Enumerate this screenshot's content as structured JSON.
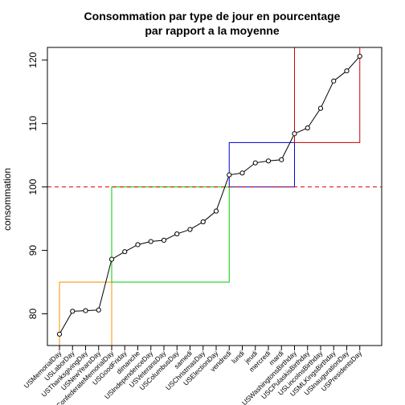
{
  "chart_data": {
    "type": "line",
    "title_line1": "Consommation par type de jour en pourcentage",
    "title_line2": "par rapport a la moyenne",
    "xlabel": "",
    "ylabel": "consommation",
    "ylim": [
      75,
      122
    ],
    "yticks": [
      80,
      90,
      100,
      110,
      120
    ],
    "reference_line": {
      "y": 100,
      "color": "#dd0000",
      "style": "dashed"
    },
    "categories": [
      "USMemorialDay",
      "USLaborDay",
      "USThanksgivingDay",
      "USNewYearsDay",
      "ConfederateMemorialDay",
      "USGoodFriday",
      "dimanche",
      "USIndependenceDay",
      "USVeteransDay",
      "USColumbusDay",
      "samedi",
      "USChristmasDay",
      "USElectionDay",
      "vendredi",
      "lundi",
      "jeudi",
      "mercredi",
      "mardi",
      "USWashingtonsBirthday",
      "USCPulaskisBirthday",
      "USLincolnsBirthday",
      "USMLKingsBirthday",
      "USInaugurationDay",
      "USPresidentsDay"
    ],
    "values": [
      76.8,
      80.4,
      80.5,
      80.6,
      88.6,
      89.8,
      90.9,
      91.4,
      91.6,
      92.6,
      93.3,
      94.5,
      96.2,
      101.9,
      102.2,
      103.8,
      104.1,
      104.3,
      108.4,
      109.3,
      112.4,
      116.7,
      118.3,
      120.6
    ],
    "boxes": [
      {
        "x_from": 0,
        "x_to": 4,
        "y_from": 75,
        "y_to": 85,
        "color": "#ff8c00"
      },
      {
        "x_from": 4,
        "x_to": 13,
        "y_from": 85,
        "y_to": 100,
        "color": "#00cc00"
      },
      {
        "x_from": 13,
        "x_to": 18,
        "y_from": 100,
        "y_to": 107,
        "color": "#0000dd"
      },
      {
        "x_from": 18,
        "x_to": 23,
        "y_from": 107,
        "y_to": 122,
        "color": "#cc0000"
      }
    ]
  }
}
